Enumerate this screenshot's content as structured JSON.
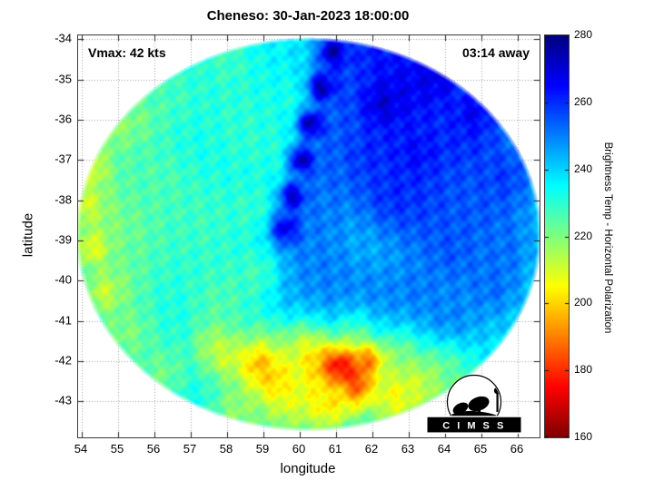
{
  "title": "Cheneso: 30-Jan-2023 18:00:00",
  "annotations": {
    "vmax": "Vmax: 42 kts",
    "eta": "03:14 away"
  },
  "axes": {
    "xlabel": "longitude",
    "ylabel": "latitude",
    "x_ticks": [
      54,
      55,
      56,
      57,
      58,
      59,
      60,
      61,
      62,
      63,
      64,
      65,
      66
    ],
    "y_ticks": [
      -34,
      -35,
      -36,
      -37,
      -38,
      -39,
      -40,
      -41,
      -42,
      -43
    ]
  },
  "colorbar": {
    "label": "Brightness Temp - Horizontal Polarization",
    "min": 160,
    "max": 280,
    "ticks": [
      280,
      260,
      240,
      220,
      200,
      180,
      160
    ]
  },
  "logo": {
    "text": "C I M S S"
  },
  "chart_data": {
    "type": "heatmap",
    "title": "Cheneso: 30-Jan-2023 18:00:00",
    "xlabel": "longitude",
    "ylabel": "latitude",
    "value_label": "Brightness Temp - Horizontal Polarization",
    "value_range": [
      160,
      280
    ],
    "x_range": [
      53.9,
      66.6
    ],
    "y_range": [
      -43.9,
      -33.9
    ],
    "grid": true,
    "disk": {
      "cx": 60.25,
      "cy": -38.85,
      "rx": 6.28,
      "ry": 4.8
    },
    "background_temp": 236,
    "noise_amp": 3.5,
    "colormap": [
      [
        160,
        "#800000"
      ],
      [
        175,
        "#ff0000"
      ],
      [
        205,
        "#ffff00"
      ],
      [
        235,
        "#00ffff"
      ],
      [
        265,
        "#0000ff"
      ],
      [
        280,
        "#000080"
      ]
    ],
    "blobs": [
      [
        63.0,
        -35.3,
        268,
        1.6
      ],
      [
        64.5,
        -36.5,
        262,
        1.5
      ],
      [
        61.8,
        -36.8,
        262,
        1.4
      ],
      [
        63.5,
        -38.0,
        258,
        1.6
      ],
      [
        65.0,
        -38.5,
        255,
        1.3
      ],
      [
        55.5,
        -38.5,
        226,
        1.8
      ],
      [
        54.7,
        -38.5,
        220,
        1.2
      ],
      [
        57.3,
        -38.5,
        228,
        1.2
      ],
      [
        60.8,
        -42.4,
        210,
        1.3
      ],
      [
        59.6,
        -42.8,
        208,
        1.0
      ],
      [
        62.0,
        -34.8,
        265,
        1.2
      ],
      [
        62.6,
        -37.8,
        260,
        0.8
      ],
      [
        65.6,
        -37.4,
        258,
        0.8
      ],
      [
        64.2,
        -39.3,
        256,
        0.9
      ],
      [
        65.5,
        -39.2,
        252,
        0.8
      ],
      [
        63.2,
        -40.3,
        252,
        0.9
      ],
      [
        64.0,
        -41.0,
        250,
        1.0
      ],
      [
        65.3,
        -40.1,
        252,
        0.9
      ],
      [
        62.5,
        -41.3,
        248,
        0.9
      ],
      [
        61.3,
        -35.0,
        258,
        0.8
      ],
      [
        61.0,
        -36.2,
        256,
        0.8
      ],
      [
        60.7,
        -37.4,
        254,
        0.8
      ],
      [
        60.5,
        -38.4,
        252,
        0.8
      ],
      [
        60.8,
        -40.2,
        250,
        1.1
      ],
      [
        62.0,
        -40.5,
        250,
        1.0
      ],
      [
        59.8,
        -39.8,
        248,
        0.9
      ],
      [
        60.2,
        -38.9,
        250,
        0.8
      ],
      [
        60.5,
        -39.6,
        250,
        0.8
      ],
      [
        61.3,
        -40.9,
        250,
        0.8
      ],
      [
        59.9,
        -40.9,
        246,
        0.7
      ],
      [
        59.7,
        -35.5,
        233,
        0.8
      ],
      [
        59.2,
        -36.8,
        232,
        0.8
      ],
      [
        58.5,
        -36.5,
        230,
        0.7
      ],
      [
        58.6,
        -38.2,
        229,
        0.7
      ],
      [
        58.8,
        -39.8,
        228,
        0.7
      ],
      [
        57.8,
        -40.5,
        226,
        1.0
      ],
      [
        58.3,
        -36.0,
        230,
        1.0
      ],
      [
        56.5,
        -35.3,
        228,
        1.0
      ],
      [
        58.0,
        -34.6,
        228,
        0.8
      ],
      [
        55.2,
        -41.3,
        220,
        0.9
      ],
      [
        55.0,
        -40.0,
        222,
        0.8
      ],
      [
        56.2,
        -42.3,
        222,
        0.8
      ],
      [
        55.5,
        -36.0,
        222,
        0.8
      ],
      [
        56.0,
        -37.5,
        226,
        0.9
      ],
      [
        54.8,
        -36.2,
        218,
        0.7
      ],
      [
        59.0,
        -41.5,
        224,
        0.6
      ],
      [
        60.0,
        -41.6,
        222,
        0.7
      ],
      [
        61.5,
        -41.4,
        226,
        0.7
      ],
      [
        62.7,
        -41.8,
        224,
        0.7
      ],
      [
        64.0,
        -42.2,
        228,
        0.7
      ],
      [
        64.5,
        -42.8,
        226,
        0.8
      ],
      [
        63.3,
        -42.6,
        214,
        0.8
      ],
      [
        58.3,
        -43.2,
        218,
        0.8
      ],
      [
        57.6,
        -41.6,
        218,
        0.6
      ],
      [
        58.0,
        -41.9,
        212,
        0.6
      ],
      [
        60.9,
        -34.3,
        275,
        0.35
      ],
      [
        60.6,
        -35.2,
        275,
        0.35
      ],
      [
        60.3,
        -36.1,
        275,
        0.35
      ],
      [
        60.05,
        -37.0,
        274,
        0.35
      ],
      [
        59.8,
        -37.9,
        272,
        0.35
      ],
      [
        59.6,
        -38.7,
        268,
        0.4
      ],
      [
        62.3,
        -35.6,
        270,
        0.5
      ],
      [
        63.8,
        -34.9,
        268,
        0.6
      ],
      [
        64.8,
        -35.8,
        266,
        0.5
      ],
      [
        63.2,
        -36.8,
        264,
        0.7
      ],
      [
        54.3,
        -37.2,
        210,
        0.5
      ],
      [
        54.3,
        -39.2,
        208,
        0.45
      ],
      [
        54.6,
        -40.3,
        212,
        0.5
      ],
      [
        54.1,
        -38.1,
        210,
        0.5
      ],
      [
        58.9,
        -42.1,
        196,
        0.55
      ],
      [
        59.3,
        -42.4,
        200,
        0.5
      ],
      [
        60.3,
        -42.0,
        205,
        0.7
      ],
      [
        61.9,
        -42.0,
        192,
        0.45
      ],
      [
        61.6,
        -42.6,
        182,
        0.5
      ],
      [
        61.1,
        -42.2,
        172,
        0.55
      ],
      [
        60.8,
        -43.0,
        203,
        0.6
      ],
      [
        62.6,
        -42.9,
        206,
        0.7
      ]
    ]
  }
}
